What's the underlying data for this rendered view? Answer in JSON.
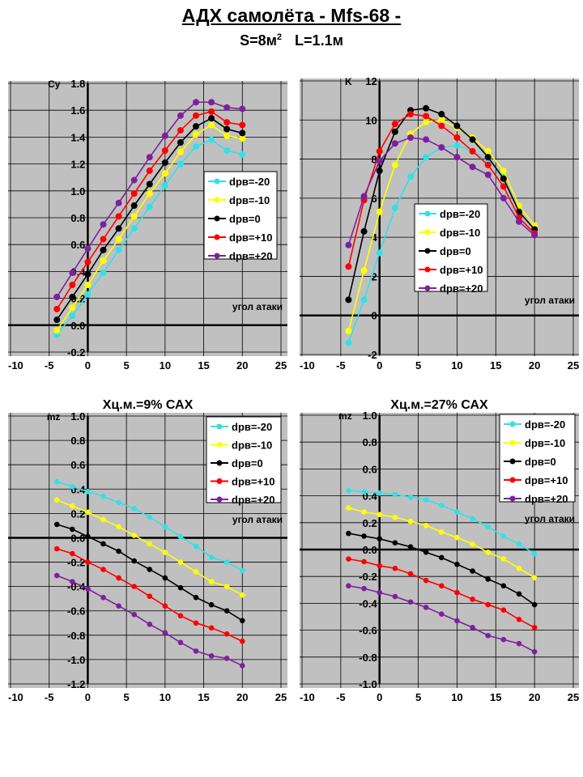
{
  "header": {
    "title": "АДХ самолёта  - Mfs-68 -",
    "subtitle_s": "S=8м",
    "subtitle_sup": "2",
    "subtitle_l": "L=1.1м"
  },
  "series_colors": {
    "dpв=-20": "#33e0e8",
    "dpв=-10": "#ffff00",
    "dpв=0": "#000000",
    "dpв=+10": "#ff0000",
    "dpв=+20": "#7f1f9f"
  },
  "chart_data": [
    {
      "type": "line",
      "title": "",
      "ylabel": "Cy",
      "xlabel": "угол атаки",
      "xlim": [
        -10,
        25
      ],
      "ylim": [
        -0.2,
        1.8
      ],
      "xstep": 5,
      "ystep": 0.2,
      "ydecimals": 1,
      "grid": true,
      "legend": "right-middle",
      "x": [
        -4,
        -2,
        0,
        2,
        4,
        6,
        8,
        10,
        12,
        14,
        16,
        18,
        20
      ],
      "series": [
        {
          "name": "dpв=-20",
          "values": [
            -0.07,
            0.07,
            0.23,
            0.39,
            0.56,
            0.72,
            0.88,
            1.04,
            1.2,
            1.33,
            1.38,
            1.3,
            1.27
          ]
        },
        {
          "name": "dpв=-10",
          "values": [
            -0.04,
            0.13,
            0.3,
            0.48,
            0.64,
            0.81,
            0.98,
            1.13,
            1.29,
            1.42,
            1.49,
            1.41,
            1.39
          ]
        },
        {
          "name": "dpв=0",
          "values": [
            0.04,
            0.21,
            0.38,
            0.56,
            0.72,
            0.89,
            1.05,
            1.21,
            1.36,
            1.48,
            1.54,
            1.46,
            1.43
          ]
        },
        {
          "name": "dpв=+10",
          "values": [
            0.12,
            0.3,
            0.47,
            0.64,
            0.81,
            0.98,
            1.15,
            1.3,
            1.45,
            1.56,
            1.59,
            1.51,
            1.49
          ]
        },
        {
          "name": "dpв=+20",
          "values": [
            0.21,
            0.39,
            0.57,
            0.75,
            0.91,
            1.08,
            1.25,
            1.41,
            1.56,
            1.66,
            1.66,
            1.62,
            1.61
          ]
        }
      ]
    },
    {
      "type": "line",
      "title": "",
      "ylabel": "K",
      "xlabel": "угол атаки",
      "xlim": [
        -10,
        25
      ],
      "ylim": [
        -2,
        12
      ],
      "xstep": 5,
      "ystep": 2,
      "ydecimals": 0,
      "grid": true,
      "legend": "center",
      "x": [
        -4,
        -2,
        0,
        2,
        4,
        6,
        8,
        10,
        12,
        14,
        16,
        18,
        20
      ],
      "series": [
        {
          "name": "dpв=-20",
          "values": [
            -1.4,
            0.8,
            3.2,
            5.5,
            7.1,
            8.1,
            8.6,
            8.7,
            8.4,
            8.0,
            7.1,
            5.3,
            4.4
          ]
        },
        {
          "name": "dpв=-10",
          "values": [
            -0.8,
            2.3,
            5.3,
            7.7,
            9.3,
            9.9,
            10.0,
            9.6,
            9.1,
            8.4,
            7.4,
            5.6,
            4.6
          ]
        },
        {
          "name": "dpв=0",
          "values": [
            0.8,
            4.3,
            7.4,
            9.4,
            10.5,
            10.6,
            10.3,
            9.7,
            9.0,
            8.1,
            7.0,
            5.3,
            4.4
          ]
        },
        {
          "name": "dpв=+10",
          "values": [
            2.5,
            5.9,
            8.4,
            9.8,
            10.3,
            10.2,
            9.7,
            9.1,
            8.4,
            7.7,
            6.6,
            5.0,
            4.2
          ]
        },
        {
          "name": "dpв=+20",
          "values": [
            3.6,
            6.1,
            7.9,
            8.8,
            9.1,
            9.0,
            8.6,
            8.1,
            7.6,
            7.2,
            6.0,
            4.8,
            4.1
          ]
        }
      ]
    },
    {
      "type": "line",
      "title": "Хц.м.=9% САХ",
      "ylabel": "mz",
      "xlabel": "угол атаки",
      "xlim": [
        -10,
        25
      ],
      "ylim": [
        -1.2,
        1.0
      ],
      "xstep": 5,
      "ystep": 0.2,
      "ydecimals": 1,
      "grid": true,
      "legend": "top-right",
      "x": [
        -4,
        -2,
        0,
        2,
        4,
        6,
        8,
        10,
        12,
        14,
        16,
        18,
        20
      ],
      "series": [
        {
          "name": "dpв=-20",
          "values": [
            0.46,
            0.42,
            0.38,
            0.34,
            0.29,
            0.24,
            0.17,
            0.09,
            0.01,
            -0.07,
            -0.16,
            -0.2,
            -0.27
          ]
        },
        {
          "name": "dpв=-10",
          "values": [
            0.31,
            0.26,
            0.21,
            0.15,
            0.09,
            0.02,
            -0.05,
            -0.12,
            -0.2,
            -0.28,
            -0.36,
            -0.4,
            -0.47
          ]
        },
        {
          "name": "dpв=0",
          "values": [
            0.11,
            0.07,
            0.01,
            -0.05,
            -0.11,
            -0.19,
            -0.26,
            -0.33,
            -0.41,
            -0.49,
            -0.55,
            -0.6,
            -0.68
          ]
        },
        {
          "name": "dpв=+10",
          "values": [
            -0.09,
            -0.13,
            -0.2,
            -0.26,
            -0.33,
            -0.4,
            -0.48,
            -0.56,
            -0.64,
            -0.7,
            -0.74,
            -0.79,
            -0.85
          ]
        },
        {
          "name": "dpв=+20",
          "values": [
            -0.31,
            -0.36,
            -0.42,
            -0.49,
            -0.56,
            -0.63,
            -0.71,
            -0.78,
            -0.86,
            -0.93,
            -0.97,
            -0.99,
            -1.05
          ]
        }
      ]
    },
    {
      "type": "line",
      "title": "Хц.м.=27% САХ",
      "ylabel": "mz",
      "xlabel": "угол атаки",
      "xlim": [
        -10,
        25
      ],
      "ylim": [
        -1.0,
        1.0
      ],
      "xstep": 5,
      "ystep": 0.2,
      "ydecimals": 1,
      "grid": true,
      "legend": "top-right",
      "x": [
        -4,
        -2,
        0,
        2,
        4,
        6,
        8,
        10,
        12,
        14,
        16,
        18,
        20
      ],
      "series": [
        {
          "name": "dpв=-20",
          "values": [
            0.44,
            0.43,
            0.42,
            0.41,
            0.39,
            0.37,
            0.33,
            0.28,
            0.23,
            0.17,
            0.1,
            0.04,
            -0.03
          ]
        },
        {
          "name": "dpв=-10",
          "values": [
            0.31,
            0.28,
            0.26,
            0.24,
            0.21,
            0.18,
            0.13,
            0.09,
            0.04,
            -0.02,
            -0.07,
            -0.14,
            -0.21
          ]
        },
        {
          "name": "dpв=0",
          "values": [
            0.12,
            0.1,
            0.08,
            0.05,
            0.02,
            -0.02,
            -0.06,
            -0.11,
            -0.16,
            -0.22,
            -0.27,
            -0.33,
            -0.41
          ]
        },
        {
          "name": "dpв=+10",
          "values": [
            -0.07,
            -0.09,
            -0.12,
            -0.14,
            -0.18,
            -0.23,
            -0.27,
            -0.32,
            -0.37,
            -0.41,
            -0.45,
            -0.52,
            -0.58
          ]
        },
        {
          "name": "dpв=+20",
          "values": [
            -0.27,
            -0.29,
            -0.32,
            -0.35,
            -0.39,
            -0.43,
            -0.48,
            -0.53,
            -0.58,
            -0.64,
            -0.67,
            -0.7,
            -0.76
          ]
        }
      ]
    }
  ]
}
